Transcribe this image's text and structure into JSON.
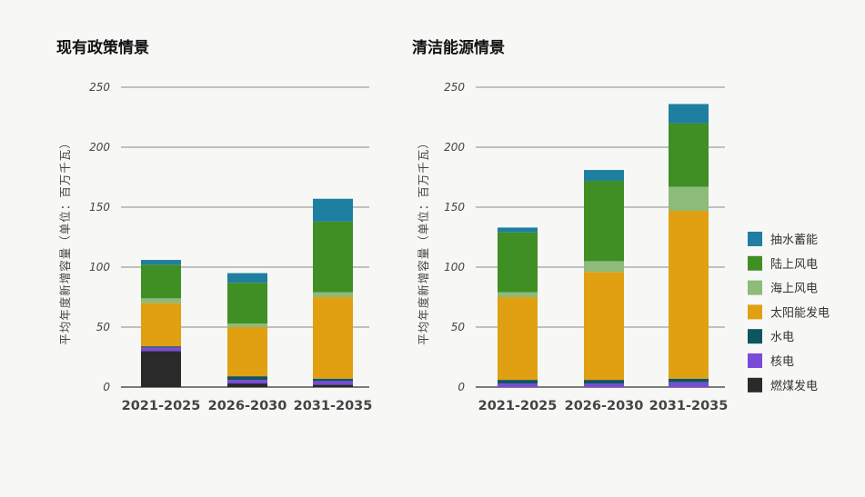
{
  "chart_data": [
    {
      "type": "bar",
      "stacked": true,
      "title": "现有政策情景",
      "ylabel": "平均年度新增容量（单位：百万千瓦）",
      "ylim": [
        0,
        250
      ],
      "yticks": [
        0,
        50,
        100,
        150,
        200,
        250
      ],
      "categories": [
        "2021-2025",
        "2026-2030",
        "2031-2035"
      ],
      "series": [
        {
          "name": "燃煤发电",
          "values": [
            30,
            3,
            2
          ]
        },
        {
          "name": "核电",
          "values": [
            3,
            3,
            3
          ]
        },
        {
          "name": "水电",
          "values": [
            1,
            3,
            2
          ]
        },
        {
          "name": "太阳能发电",
          "values": [
            36,
            41,
            68
          ]
        },
        {
          "name": "海上风电",
          "values": [
            4,
            3,
            4
          ]
        },
        {
          "name": "陆上风电",
          "values": [
            28,
            34,
            59
          ]
        },
        {
          "name": "抽水蓄能",
          "values": [
            4,
            8,
            19
          ]
        }
      ]
    },
    {
      "type": "bar",
      "stacked": true,
      "title": "清洁能源情景",
      "ylabel": "平均年度新增容量（单位：百万千瓦）",
      "ylim": [
        0,
        250
      ],
      "yticks": [
        0,
        50,
        100,
        150,
        200,
        250
      ],
      "categories": [
        "2021-2025",
        "2026-2030",
        "2031-2035"
      ],
      "series": [
        {
          "name": "燃煤发电",
          "values": [
            0,
            0,
            0
          ]
        },
        {
          "name": "核电",
          "values": [
            3,
            3,
            4
          ]
        },
        {
          "name": "水电",
          "values": [
            3,
            3,
            3
          ]
        },
        {
          "name": "太阳能发电",
          "values": [
            69,
            90,
            140
          ]
        },
        {
          "name": "海上风电",
          "values": [
            4,
            9,
            20
          ]
        },
        {
          "name": "陆上风电",
          "values": [
            50,
            67,
            53
          ]
        },
        {
          "name": "抽水蓄能",
          "values": [
            4,
            9,
            16
          ]
        }
      ]
    }
  ],
  "legend": {
    "items": [
      {
        "name": "抽水蓄能",
        "color": "#1f7fa0"
      },
      {
        "name": "陆上风电",
        "color": "#3f8f24"
      },
      {
        "name": "海上风电",
        "color": "#8dbb7a"
      },
      {
        "name": "太阳能发电",
        "color": "#e0a012"
      },
      {
        "name": "水电",
        "color": "#0f5560"
      },
      {
        "name": "核电",
        "color": "#7a4ad8"
      },
      {
        "name": "燃煤发电",
        "color": "#2a2a2a"
      }
    ]
  },
  "colors": {
    "燃煤发电": "#2a2a2a",
    "核电": "#7a4ad8",
    "水电": "#0f5560",
    "太阳能发电": "#e0a012",
    "海上风电": "#8dbb7a",
    "陆上风电": "#3f8f24",
    "抽水蓄能": "#1f7fa0"
  }
}
